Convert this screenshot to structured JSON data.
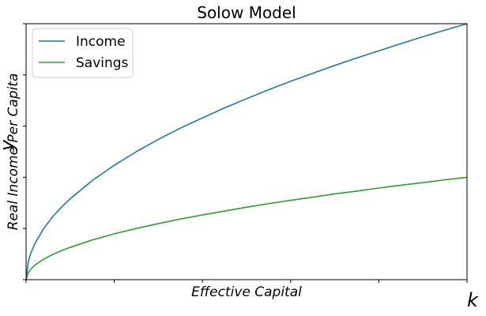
{
  "chart_data": {
    "type": "line",
    "title": "Solow Model",
    "xlabel": "Effective Capital",
    "ylabel": "Real Income Per Capita",
    "x_symbol": "k",
    "y_symbol": "y",
    "xlim": [
      0,
      1
    ],
    "ylim": [
      0,
      1
    ],
    "x_tick_count": 6,
    "y_tick_count": 6,
    "tick_labels_shown": false,
    "grid": false,
    "legend_position": "top-left",
    "series": [
      {
        "name": "Income",
        "color": "#1f77b4",
        "x": [
          0,
          0.005,
          0.01,
          0.02,
          0.04,
          0.06,
          0.08,
          0.1,
          0.15,
          0.2,
          0.25,
          0.3,
          0.35,
          0.4,
          0.45,
          0.5,
          0.55,
          0.6,
          0.65,
          0.7,
          0.75,
          0.8,
          0.85,
          0.9,
          0.95,
          1.0
        ],
        "y": [
          0,
          0.071,
          0.1,
          0.141,
          0.2,
          0.245,
          0.283,
          0.316,
          0.387,
          0.447,
          0.5,
          0.548,
          0.592,
          0.632,
          0.671,
          0.707,
          0.742,
          0.775,
          0.806,
          0.837,
          0.866,
          0.894,
          0.922,
          0.949,
          0.975,
          1.0
        ]
      },
      {
        "name": "Savings",
        "color": "#2ca02c",
        "x": [
          0,
          0.005,
          0.01,
          0.02,
          0.04,
          0.06,
          0.08,
          0.1,
          0.15,
          0.2,
          0.25,
          0.3,
          0.35,
          0.4,
          0.45,
          0.5,
          0.55,
          0.6,
          0.65,
          0.7,
          0.75,
          0.8,
          0.85,
          0.9,
          0.95,
          1.0
        ],
        "y": [
          0,
          0.028,
          0.04,
          0.057,
          0.08,
          0.098,
          0.113,
          0.126,
          0.155,
          0.179,
          0.2,
          0.219,
          0.237,
          0.253,
          0.268,
          0.283,
          0.297,
          0.31,
          0.322,
          0.335,
          0.346,
          0.358,
          0.369,
          0.379,
          0.39,
          0.4
        ]
      }
    ]
  }
}
